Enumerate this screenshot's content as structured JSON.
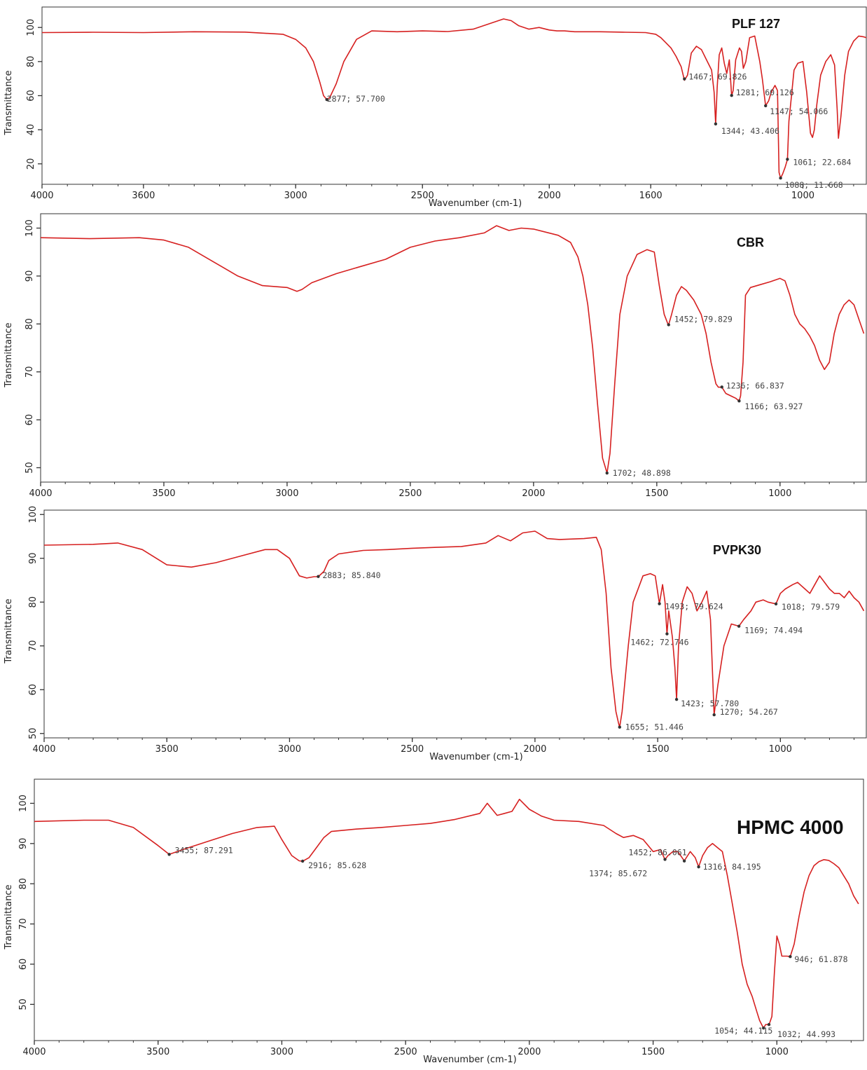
{
  "colors": {
    "spectrum": "#d62020",
    "axis": "#333333",
    "annotation_text": "#444444",
    "background": "#ffffff"
  },
  "chart_data": [
    {
      "type": "line",
      "title": "PLF 127",
      "xlabel": "Wavenumber (cm-1)",
      "ylabel": "Transmittance",
      "x_reversed": true,
      "xlim": [
        4000,
        750
      ],
      "ylim": [
        8,
        112
      ],
      "xticks": [
        4000,
        3600,
        3000,
        2500,
        2000,
        1600,
        1000
      ],
      "yticks": [
        20,
        40,
        60,
        80,
        100
      ],
      "series": [
        {
          "x": [
            4000,
            3800,
            3600,
            3400,
            3200,
            3050,
            3000,
            2960,
            2930,
            2905,
            2890,
            2877,
            2865,
            2840,
            2810,
            2760,
            2700,
            2600,
            2500,
            2400,
            2300,
            2220,
            2180,
            2150,
            2120,
            2080,
            2040,
            2000,
            1970,
            1940,
            1900,
            1800,
            1700,
            1620,
            1580,
            1560,
            1540,
            1520,
            1500,
            1480,
            1467,
            1455,
            1440,
            1420,
            1400,
            1380,
            1360,
            1350,
            1344,
            1338,
            1330,
            1320,
            1310,
            1300,
            1290,
            1281,
            1275,
            1265,
            1250,
            1242,
            1235,
            1225,
            1210,
            1190,
            1170,
            1160,
            1147,
            1135,
            1125,
            1110,
            1100,
            1094,
            1088,
            1080,
            1070,
            1061,
            1055,
            1045,
            1035,
            1020,
            1000,
            985,
            970,
            962,
            955,
            945,
            930,
            910,
            890,
            875,
            865,
            860,
            850,
            835,
            820,
            800,
            780,
            760,
            750
          ],
          "y": [
            97,
            97.2,
            97,
            97.5,
            97.3,
            96,
            93,
            88,
            80,
            68,
            60,
            57.7,
            59,
            67,
            80,
            93,
            98,
            97.5,
            98,
            97.6,
            99,
            103,
            105,
            104,
            101,
            99,
            100,
            98.5,
            98,
            98,
            97.5,
            97.5,
            97.2,
            97,
            96,
            94,
            91,
            88,
            83,
            77,
            69,
            72,
            85,
            89,
            87,
            81,
            75,
            62,
            43.4,
            65,
            84,
            88,
            79,
            73,
            81,
            60,
            63,
            81,
            88,
            86,
            76,
            80,
            94,
            95,
            80,
            70,
            54.07,
            57,
            62,
            66,
            63,
            15,
            11.6,
            14,
            18,
            22.6,
            45,
            60,
            75,
            79,
            80,
            62,
            38,
            35.5,
            40,
            55,
            72,
            80,
            84,
            78,
            52,
            35,
            48,
            72,
            86,
            92,
            95,
            94.5,
            94
          ]
        }
      ],
      "annotations": [
        {
          "label": "2877; 57.700",
          "x": 2877,
          "y": 57.7
        },
        {
          "label": "1467; 69.826",
          "x": 1467,
          "y": 69.826
        },
        {
          "label": "1281; 60.126",
          "x": 1281,
          "y": 60.126
        },
        {
          "label": "1147; 54.066",
          "x": 1147,
          "y": 54.066
        },
        {
          "label": "1344; 43.406",
          "x": 1344,
          "y": 43.406
        },
        {
          "label": "1061; 22.684",
          "x": 1061,
          "y": 22.684
        },
        {
          "label": "1088; 11.668",
          "x": 1088,
          "y": 11.668
        }
      ]
    },
    {
      "type": "line",
      "title": "CBR",
      "xlabel": "",
      "ylabel": "Transmittance",
      "x_reversed": true,
      "xlim": [
        4000,
        650
      ],
      "ylim": [
        47,
        103
      ],
      "xticks": [
        4000,
        3500,
        3000,
        2500,
        2000,
        1500,
        1000
      ],
      "yticks": [
        50,
        60,
        70,
        80,
        90,
        100
      ],
      "series": [
        {
          "x": [
            4000,
            3800,
            3600,
            3500,
            3400,
            3300,
            3200,
            3100,
            3000,
            2960,
            2940,
            2900,
            2800,
            2700,
            2600,
            2500,
            2400,
            2300,
            2200,
            2150,
            2100,
            2050,
            2000,
            1900,
            1850,
            1820,
            1800,
            1780,
            1760,
            1740,
            1720,
            1702,
            1690,
            1670,
            1650,
            1620,
            1580,
            1540,
            1510,
            1490,
            1470,
            1455,
            1452,
            1440,
            1420,
            1400,
            1380,
            1350,
            1320,
            1300,
            1280,
            1260,
            1250,
            1236,
            1220,
            1200,
            1180,
            1166,
            1160,
            1150,
            1140,
            1120,
            1080,
            1040,
            1000,
            980,
            960,
            940,
            920,
            900,
            880,
            860,
            840,
            820,
            800,
            780,
            760,
            740,
            720,
            700,
            680,
            660
          ],
          "y": [
            98,
            97.8,
            98,
            97.5,
            96,
            93,
            90,
            88,
            87.6,
            86.8,
            87.2,
            88.6,
            90.5,
            92,
            93.5,
            96,
            97.3,
            98,
            99,
            100.5,
            99.5,
            100,
            99.8,
            98.5,
            97,
            94,
            90,
            84,
            75,
            63,
            52,
            48.9,
            53,
            68,
            82,
            90,
            94.5,
            95.5,
            95,
            88,
            82,
            80,
            79.8,
            82,
            86,
            87.8,
            87,
            85,
            82,
            78,
            72,
            67.5,
            66.8,
            66.8,
            65.5,
            65,
            64.5,
            63.9,
            65,
            72,
            86,
            87.6,
            88.2,
            88.8,
            89.5,
            89,
            86,
            82,
            80,
            79,
            77.5,
            75.5,
            72.5,
            70.5,
            72,
            78,
            82,
            84,
            85,
            84,
            81,
            78
          ]
        }
      ],
      "annotations": [
        {
          "label": "1452; 79.829",
          "x": 1452,
          "y": 79.829
        },
        {
          "label": "1236; 66.837",
          "x": 1236,
          "y": 66.837
        },
        {
          "label": "1166; 63.927",
          "x": 1166,
          "y": 63.927
        },
        {
          "label": "1702; 48.898",
          "x": 1702,
          "y": 48.898
        }
      ]
    },
    {
      "type": "line",
      "title": "PVPK30",
      "xlabel": "Wavenumber (cm-1)",
      "ylabel": "Transmittance",
      "x_reversed": true,
      "xlim": [
        4000,
        650
      ],
      "ylim": [
        49,
        101
      ],
      "xticks": [
        4000,
        3500,
        3000,
        2500,
        2000,
        1500,
        1000
      ],
      "yticks": [
        50,
        60,
        70,
        80,
        90,
        100
      ],
      "series": [
        {
          "x": [
            4000,
            3800,
            3700,
            3600,
            3500,
            3400,
            3300,
            3200,
            3100,
            3050,
            3000,
            2960,
            2930,
            2900,
            2883,
            2860,
            2840,
            2800,
            2700,
            2600,
            2500,
            2400,
            2300,
            2200,
            2150,
            2100,
            2050,
            2000,
            1950,
            1900,
            1800,
            1750,
            1730,
            1710,
            1690,
            1670,
            1660,
            1655,
            1645,
            1620,
            1600,
            1560,
            1530,
            1510,
            1493,
            1480,
            1470,
            1462,
            1455,
            1440,
            1430,
            1423,
            1415,
            1400,
            1380,
            1360,
            1340,
            1320,
            1300,
            1285,
            1270,
            1255,
            1230,
            1200,
            1169,
            1150,
            1120,
            1100,
            1070,
            1050,
            1018,
            1000,
            980,
            950,
            930,
            900,
            880,
            860,
            840,
            820,
            800,
            780,
            760,
            740,
            720,
            700,
            680,
            660
          ],
          "y": [
            93,
            93.2,
            93.5,
            92,
            88.5,
            88,
            89,
            90.5,
            92,
            92,
            90,
            86,
            85.5,
            85.8,
            85.8,
            87,
            89.5,
            91,
            91.8,
            92,
            92.3,
            92.5,
            92.7,
            93.5,
            95.2,
            94,
            95.8,
            96.2,
            94.5,
            94.3,
            94.5,
            94.8,
            92,
            82,
            65,
            55,
            52.5,
            51.4,
            55,
            70,
            80,
            86,
            86.5,
            86,
            79.6,
            84,
            80,
            72.7,
            78,
            72,
            65,
            57.8,
            70,
            80,
            83.5,
            82,
            78,
            80,
            82.5,
            76,
            54.3,
            61,
            70,
            75,
            74.5,
            76,
            78,
            80,
            80.5,
            80,
            79.6,
            82,
            83,
            84,
            84.5,
            83,
            82,
            84,
            86,
            84.5,
            83,
            82,
            82,
            81,
            82.5,
            81,
            80,
            78
          ]
        }
      ],
      "annotations": [
        {
          "label": "2883; 85.840",
          "x": 2883,
          "y": 85.84
        },
        {
          "label": "1493; 79.624",
          "x": 1493,
          "y": 79.624
        },
        {
          "label": "1018; 79.579",
          "x": 1018,
          "y": 79.579
        },
        {
          "label": "1462; 72.746",
          "x": 1462,
          "y": 72.746
        },
        {
          "label": "1169; 74.494",
          "x": 1169,
          "y": 74.494
        },
        {
          "label": "1423; 57.780",
          "x": 1423,
          "y": 57.78
        },
        {
          "label": "1270; 54.267",
          "x": 1270,
          "y": 54.267
        },
        {
          "label": "1655; 51.446",
          "x": 1655,
          "y": 51.446
        }
      ]
    },
    {
      "type": "line",
      "title": "HPMC 4000",
      "xlabel": "Wavenumber (cm-1)",
      "ylabel": "Transmittance",
      "x_reversed": true,
      "xlim": [
        4000,
        650
      ],
      "ylim": [
        41,
        106
      ],
      "xticks": [
        4000,
        3500,
        3000,
        2500,
        2000,
        1500,
        1000
      ],
      "yticks": [
        50,
        60,
        70,
        80,
        90,
        100
      ],
      "series": [
        {
          "x": [
            4000,
            3800,
            3700,
            3600,
            3500,
            3455,
            3400,
            3300,
            3200,
            3100,
            3030,
            3000,
            2960,
            2930,
            2916,
            2890,
            2860,
            2830,
            2800,
            2700,
            2600,
            2500,
            2400,
            2300,
            2200,
            2170,
            2130,
            2100,
            2070,
            2040,
            2000,
            1950,
            1900,
            1800,
            1700,
            1650,
            1620,
            1580,
            1540,
            1500,
            1470,
            1452,
            1440,
            1420,
            1400,
            1374,
            1350,
            1330,
            1316,
            1300,
            1280,
            1260,
            1240,
            1220,
            1200,
            1180,
            1160,
            1140,
            1120,
            1100,
            1080,
            1070,
            1054,
            1045,
            1032,
            1020,
            1010,
            1000,
            990,
            980,
            960,
            946,
            930,
            910,
            890,
            870,
            850,
            830,
            810,
            790,
            770,
            750,
            730,
            710,
            690,
            670
          ],
          "y": [
            95.5,
            95.8,
            95.8,
            94,
            89.5,
            87.3,
            88.5,
            90.5,
            92.5,
            94,
            94.3,
            91,
            87,
            85.7,
            85.6,
            86.5,
            89,
            91.5,
            93,
            93.6,
            94,
            94.5,
            95,
            96,
            97.5,
            100,
            97,
            97.5,
            98,
            101,
            98.5,
            96.8,
            95.8,
            95.5,
            94.5,
            92.5,
            91.5,
            92,
            91,
            88,
            88.5,
            86,
            87,
            88,
            88,
            85.7,
            88,
            86.5,
            84.2,
            87,
            89,
            90,
            89,
            88,
            82,
            75,
            68,
            60,
            55,
            52,
            48,
            46,
            44.1,
            45,
            44.9,
            47,
            58,
            67,
            65,
            62,
            62,
            61.9,
            65,
            72,
            78,
            82,
            84.5,
            85.5,
            86,
            85.8,
            85,
            84,
            82,
            80,
            77,
            75
          ]
        }
      ],
      "annotations": [
        {
          "label": "3455; 87.291",
          "x": 3455,
          "y": 87.291
        },
        {
          "label": "2916; 85.628",
          "x": 2916,
          "y": 85.628
        },
        {
          "label": "1452; 86.061",
          "x": 1452,
          "y": 86.061
        },
        {
          "label": "1316; 84.195",
          "x": 1316,
          "y": 84.195
        },
        {
          "label": "1374; 85.672",
          "x": 1374,
          "y": 85.672
        },
        {
          "label": "946; 61.878",
          "x": 946,
          "y": 61.878
        },
        {
          "label": "1054; 44.115",
          "x": 1054,
          "y": 44.115
        },
        {
          "label": "1032; 44.993",
          "x": 1032,
          "y": 44.993
        }
      ]
    }
  ]
}
